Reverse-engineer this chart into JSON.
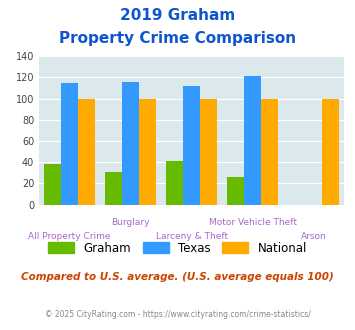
{
  "title_line1": "2019 Graham",
  "title_line2": "Property Crime Comparison",
  "categories": [
    "All Property Crime",
    "Burglary",
    "Larceny & Theft",
    "Motor Vehicle Theft",
    "Arson"
  ],
  "graham": [
    38,
    31,
    41,
    26,
    0
  ],
  "texas": [
    115,
    116,
    112,
    121,
    0
  ],
  "national": [
    100,
    100,
    100,
    100,
    100
  ],
  "graham_color": "#66bb00",
  "texas_color": "#3399ff",
  "national_color": "#ffaa00",
  "ylim": [
    0,
    140
  ],
  "yticks": [
    0,
    20,
    40,
    60,
    80,
    100,
    120,
    140
  ],
  "bg_color": "#dce9ec",
  "title_color": "#1155cc",
  "xlabel_color": "#aa66cc",
  "footer_text": "Compared to U.S. average. (U.S. average equals 100)",
  "footer_color": "#cc4400",
  "copyright_text": "© 2025 CityRating.com - https://www.cityrating.com/crime-statistics/",
  "copyright_color": "#888888",
  "legend_labels": [
    "Graham",
    "Texas",
    "National"
  ],
  "bar_width": 0.28
}
